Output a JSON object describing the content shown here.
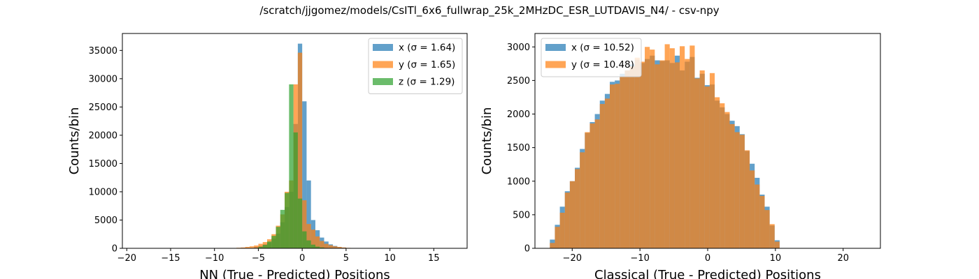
{
  "figure": {
    "title": "/scratch/jjgomez/models/CsITl_6x6_fullwrap_25k_2MHzDC_ESR_LUTDAVIS_N4/ - csv-npy"
  },
  "colors": {
    "x": "#1f77b4",
    "y": "#ff7f0e",
    "z": "#2ca02c",
    "bar_alpha": 0.7
  },
  "chart_data": [
    {
      "type": "histogram",
      "xlabel": "NN (True - Predicted) Positions",
      "ylabel": "Counts/bin",
      "xlim": [
        -20.5,
        18.8
      ],
      "ylim": [
        0,
        38000
      ],
      "xticks": [
        -20,
        -15,
        -10,
        -5,
        0,
        5,
        10,
        15
      ],
      "xtick_labels": [
        "−20",
        "−15",
        "−10",
        "−5",
        "0",
        "5",
        "10",
        "15"
      ],
      "yticks": [
        0,
        5000,
        10000,
        15000,
        20000,
        25000,
        30000,
        35000
      ],
      "ytick_labels": [
        "0",
        "5000",
        "10000",
        "15000",
        "20000",
        "25000",
        "30000",
        "35000"
      ],
      "legend_position": "upper right",
      "series": [
        {
          "key": "x",
          "name": "x (σ = 1.64)",
          "bin_start": -5.5,
          "bin_width": 0.5,
          "values": [
            250,
            400,
            700,
            1000,
            1700,
            2600,
            4600,
            7300,
            10000,
            22000,
            36200,
            26000,
            12000,
            5000,
            3200,
            1900,
            1200,
            700,
            420,
            200,
            120
          ]
        },
        {
          "key": "y",
          "name": "y (σ = 1.65)",
          "bin_start": -8.0,
          "bin_width": 0.5,
          "values": [
            60,
            100,
            150,
            250,
            350,
            500,
            800,
            1100,
            1600,
            2500,
            4000,
            6000,
            10000,
            12000,
            29000,
            34600,
            8500,
            4300,
            3300,
            2100,
            1300,
            800,
            550,
            350,
            250,
            150,
            80
          ]
        },
        {
          "key": "z",
          "name": "z (σ = 1.29)",
          "bin_start": -5.0,
          "bin_width": 0.5,
          "values": [
            250,
            600,
            1200,
            2200,
            3800,
            6800,
            9800,
            29000,
            20500,
            8800,
            3000,
            1400,
            650,
            300,
            150
          ]
        }
      ]
    },
    {
      "type": "histogram",
      "xlabel": "Classical (True - Predicted) Positions",
      "ylabel": "Counts/bin",
      "xlim": [
        -25.5,
        25.5
      ],
      "ylim": [
        0,
        3200
      ],
      "xticks": [
        -20,
        -10,
        0,
        10,
        20
      ],
      "xtick_labels": [
        "−20",
        "−10",
        "0",
        "10",
        "20"
      ],
      "yticks": [
        0,
        500,
        1000,
        1500,
        2000,
        2500,
        3000
      ],
      "ytick_labels": [
        "0",
        "500",
        "1000",
        "1500",
        "2000",
        "2500",
        "3000"
      ],
      "legend_position": "upper left",
      "series": [
        {
          "key": "x",
          "name": "x (σ = 10.52)",
          "bin_start": -23.3,
          "bin_width": 0.7375,
          "values": [
            130,
            350,
            620,
            850,
            1000,
            1200,
            1480,
            1720,
            1880,
            2000,
            2200,
            2300,
            2480,
            2500,
            2600,
            2650,
            2740,
            2810,
            2760,
            2820,
            2870,
            2800,
            2790,
            2800,
            2760,
            2870,
            2650,
            2780,
            2850,
            2540,
            2600,
            2430,
            2440,
            2200,
            2100,
            2000,
            1900,
            1820,
            1700,
            1450,
            1260,
            1050,
            800,
            620,
            340,
            120
          ]
        },
        {
          "key": "y",
          "name": "y (σ = 10.48)",
          "bin_start": -23.3,
          "bin_width": 0.7375,
          "values": [
            80,
            320,
            530,
            830,
            1000,
            1180,
            1430,
            1730,
            1860,
            1920,
            2150,
            2230,
            2440,
            2450,
            2560,
            2650,
            2710,
            2840,
            2780,
            3000,
            2960,
            2740,
            2800,
            3040,
            2980,
            2770,
            3010,
            2820,
            3020,
            2530,
            2650,
            2410,
            2610,
            2250,
            2160,
            2030,
            1850,
            1730,
            1690,
            1460,
            1160,
            950,
            780,
            570,
            360,
            100
          ]
        }
      ]
    }
  ]
}
